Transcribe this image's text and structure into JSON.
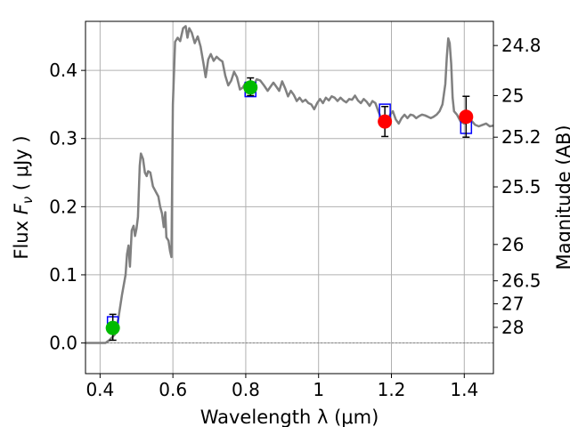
{
  "chart_data": {
    "type": "line",
    "xlabel": "Wavelength  λ (μm)",
    "ylabel": "Flux  F_ν  ( μJy )",
    "ylabel_parts": {
      "prefix": "Flux  ",
      "symbol": "F",
      "subscript": "ν",
      "suffix": "  ( μJy )"
    },
    "y2label": "Magnitude (AB)",
    "xlim": [
      0.36,
      1.48
    ],
    "ylim": [
      -0.045,
      0.472
    ],
    "grid": true,
    "x_ticks": [
      {
        "value": 0.4,
        "label": "0.4"
      },
      {
        "value": 0.6,
        "label": "0.6"
      },
      {
        "value": 0.8,
        "label": "0.8"
      },
      {
        "value": 1.0,
        "label": "1"
      },
      {
        "value": 1.2,
        "label": "1.2"
      },
      {
        "value": 1.4,
        "label": "1.4"
      }
    ],
    "y_ticks": [
      {
        "value": 0.0,
        "label": "0.0"
      },
      {
        "value": 0.1,
        "label": "0.1"
      },
      {
        "value": 0.2,
        "label": "0.2"
      },
      {
        "value": 0.3,
        "label": "0.3"
      },
      {
        "value": 0.4,
        "label": "0.4"
      }
    ],
    "y2_ticks": [
      {
        "value": 24.8,
        "label": "24.8"
      },
      {
        "value": 25.0,
        "label": "25"
      },
      {
        "value": 25.2,
        "label": "25.2"
      },
      {
        "value": 25.5,
        "label": "25.5"
      },
      {
        "value": 26.0,
        "label": "26"
      },
      {
        "value": 26.5,
        "label": "26.5"
      },
      {
        "value": 27.0,
        "label": "27"
      },
      {
        "value": 28.0,
        "label": "28"
      }
    ],
    "series": [
      {
        "kind": "model_spectrum",
        "color": "#808080",
        "points": [
          [
            0.36,
            0.0
          ],
          [
            0.415,
            0.0
          ],
          [
            0.425,
            0.004
          ],
          [
            0.44,
            0.012
          ],
          [
            0.45,
            0.035
          ],
          [
            0.46,
            0.07
          ],
          [
            0.47,
            0.1
          ],
          [
            0.474,
            0.13
          ],
          [
            0.478,
            0.143
          ],
          [
            0.482,
            0.112
          ],
          [
            0.487,
            0.165
          ],
          [
            0.492,
            0.172
          ],
          [
            0.496,
            0.157
          ],
          [
            0.5,
            0.168
          ],
          [
            0.504,
            0.185
          ],
          [
            0.509,
            0.26
          ],
          [
            0.512,
            0.278
          ],
          [
            0.518,
            0.27
          ],
          [
            0.523,
            0.25
          ],
          [
            0.528,
            0.245
          ],
          [
            0.532,
            0.252
          ],
          [
            0.538,
            0.25
          ],
          [
            0.545,
            0.23
          ],
          [
            0.555,
            0.22
          ],
          [
            0.56,
            0.215
          ],
          [
            0.565,
            0.2
          ],
          [
            0.57,
            0.19
          ],
          [
            0.575,
            0.17
          ],
          [
            0.579,
            0.192
          ],
          [
            0.582,
            0.155
          ],
          [
            0.588,
            0.15
          ],
          [
            0.592,
            0.135
          ],
          [
            0.596,
            0.126
          ],
          [
            0.6,
            0.35
          ],
          [
            0.606,
            0.442
          ],
          [
            0.613,
            0.448
          ],
          [
            0.62,
            0.443
          ],
          [
            0.628,
            0.462
          ],
          [
            0.635,
            0.465
          ],
          [
            0.64,
            0.448
          ],
          [
            0.645,
            0.462
          ],
          [
            0.652,
            0.455
          ],
          [
            0.66,
            0.44
          ],
          [
            0.668,
            0.45
          ],
          [
            0.676,
            0.435
          ],
          [
            0.684,
            0.41
          ],
          [
            0.69,
            0.39
          ],
          [
            0.697,
            0.416
          ],
          [
            0.704,
            0.424
          ],
          [
            0.712,
            0.414
          ],
          [
            0.72,
            0.42
          ],
          [
            0.728,
            0.416
          ],
          [
            0.736,
            0.413
          ],
          [
            0.744,
            0.392
          ],
          [
            0.752,
            0.378
          ],
          [
            0.76,
            0.385
          ],
          [
            0.768,
            0.398
          ],
          [
            0.776,
            0.39
          ],
          [
            0.784,
            0.372
          ],
          [
            0.792,
            0.375
          ],
          [
            0.8,
            0.382
          ],
          [
            0.81,
            0.38
          ],
          [
            0.82,
            0.376
          ],
          [
            0.83,
            0.387
          ],
          [
            0.84,
            0.385
          ],
          [
            0.85,
            0.378
          ],
          [
            0.86,
            0.37
          ],
          [
            0.868,
            0.376
          ],
          [
            0.876,
            0.382
          ],
          [
            0.884,
            0.376
          ],
          [
            0.892,
            0.37
          ],
          [
            0.9,
            0.384
          ],
          [
            0.908,
            0.374
          ],
          [
            0.916,
            0.362
          ],
          [
            0.924,
            0.37
          ],
          [
            0.932,
            0.364
          ],
          [
            0.94,
            0.355
          ],
          [
            0.948,
            0.36
          ],
          [
            0.956,
            0.354
          ],
          [
            0.964,
            0.357
          ],
          [
            0.972,
            0.352
          ],
          [
            0.98,
            0.35
          ],
          [
            0.988,
            0.343
          ],
          [
            0.996,
            0.352
          ],
          [
            1.004,
            0.358
          ],
          [
            1.012,
            0.352
          ],
          [
            1.02,
            0.36
          ],
          [
            1.028,
            0.356
          ],
          [
            1.036,
            0.362
          ],
          [
            1.044,
            0.36
          ],
          [
            1.052,
            0.355
          ],
          [
            1.06,
            0.36
          ],
          [
            1.068,
            0.356
          ],
          [
            1.076,
            0.353
          ],
          [
            1.084,
            0.358
          ],
          [
            1.092,
            0.357
          ],
          [
            1.1,
            0.363
          ],
          [
            1.108,
            0.356
          ],
          [
            1.116,
            0.352
          ],
          [
            1.124,
            0.358
          ],
          [
            1.132,
            0.354
          ],
          [
            1.14,
            0.348
          ],
          [
            1.148,
            0.355
          ],
          [
            1.156,
            0.352
          ],
          [
            1.164,
            0.34
          ],
          [
            1.172,
            0.33
          ],
          [
            1.18,
            0.33
          ],
          [
            1.188,
            0.324
          ],
          [
            1.196,
            0.335
          ],
          [
            1.204,
            0.34
          ],
          [
            1.212,
            0.328
          ],
          [
            1.22,
            0.322
          ],
          [
            1.228,
            0.33
          ],
          [
            1.236,
            0.335
          ],
          [
            1.244,
            0.33
          ],
          [
            1.252,
            0.335
          ],
          [
            1.26,
            0.334
          ],
          [
            1.268,
            0.33
          ],
          [
            1.276,
            0.333
          ],
          [
            1.284,
            0.335
          ],
          [
            1.292,
            0.334
          ],
          [
            1.3,
            0.332
          ],
          [
            1.308,
            0.33
          ],
          [
            1.316,
            0.332
          ],
          [
            1.324,
            0.335
          ],
          [
            1.332,
            0.34
          ],
          [
            1.34,
            0.35
          ],
          [
            1.348,
            0.38
          ],
          [
            1.352,
            0.42
          ],
          [
            1.356,
            0.447
          ],
          [
            1.36,
            0.44
          ],
          [
            1.364,
            0.41
          ],
          [
            1.368,
            0.36
          ],
          [
            1.372,
            0.34
          ],
          [
            1.38,
            0.335
          ],
          [
            1.39,
            0.325
          ],
          [
            1.4,
            0.322
          ],
          [
            1.41,
            0.324
          ],
          [
            1.42,
            0.326
          ],
          [
            1.43,
            0.32
          ],
          [
            1.44,
            0.318
          ],
          [
            1.45,
            0.32
          ],
          [
            1.46,
            0.322
          ],
          [
            1.47,
            0.318
          ],
          [
            1.48,
            0.319
          ]
        ]
      },
      {
        "kind": "model_photometry",
        "marker": "square",
        "color": "#0000ff",
        "points": [
          [
            0.435,
            0.028
          ],
          [
            0.813,
            0.372
          ],
          [
            1.182,
            0.34
          ],
          [
            1.405,
            0.318
          ]
        ]
      },
      {
        "kind": "observed_photometry",
        "marker": "circle",
        "points": [
          {
            "x": 0.435,
            "y": 0.022,
            "err_low": 0.018,
            "err_high": 0.02,
            "color": "#00bb00"
          },
          {
            "x": 0.813,
            "y": 0.375,
            "err_low": 0.012,
            "err_high": 0.014,
            "color": "#00bb00"
          },
          {
            "x": 1.182,
            "y": 0.325,
            "err_low": 0.022,
            "err_high": 0.022,
            "color": "#ff0000"
          },
          {
            "x": 1.405,
            "y": 0.332,
            "err_low": 0.03,
            "err_high": 0.03,
            "color": "#ff0000"
          }
        ]
      }
    ]
  }
}
